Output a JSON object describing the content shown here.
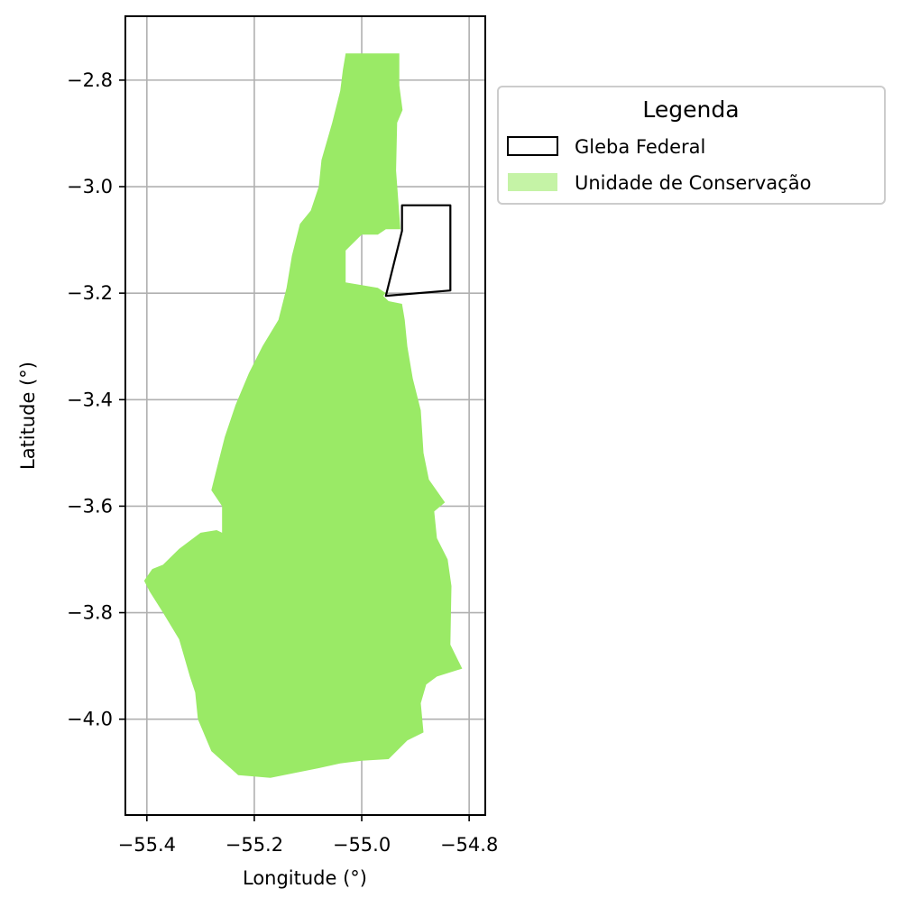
{
  "chart_data": {
    "type": "map",
    "xlabel": "Longitude (°)",
    "ylabel": "Latitude (°)",
    "xlim": [
      -55.44,
      -54.77
    ],
    "ylim": [
      -4.18,
      -2.68
    ],
    "x_ticks": [
      -55.4,
      -55.2,
      -55.0,
      -54.8
    ],
    "x_tick_labels": [
      "−55.4",
      "−55.2",
      "−55.0",
      "−54.8"
    ],
    "y_ticks": [
      -2.8,
      -3.0,
      -3.2,
      -3.4,
      -3.6,
      -3.8,
      -4.0
    ],
    "y_tick_labels": [
      "−2.8",
      "−3.0",
      "−3.2",
      "−3.4",
      "−3.6",
      "−3.8",
      "−4.0"
    ],
    "grid": true,
    "legend": {
      "title": "Legenda",
      "placement": "outside-right-top",
      "entries": [
        {
          "label": "Gleba Federal",
          "style": "outline",
          "color": "#000000"
        },
        {
          "label": "Unidade de Conservação",
          "style": "fill",
          "color": "#c5f3a6"
        }
      ]
    },
    "layers": [
      {
        "name": "Unidade de Conservação",
        "fill": "#9aea66",
        "coordinates": [
          [
            -55.03,
            -2.75
          ],
          [
            -54.93,
            -2.75
          ],
          [
            -54.93,
            -2.81
          ],
          [
            -54.924,
            -2.856
          ],
          [
            -54.934,
            -2.88
          ],
          [
            -54.936,
            -2.97
          ],
          [
            -54.928,
            -3.08
          ],
          [
            -54.955,
            -3.08
          ],
          [
            -54.97,
            -3.09
          ],
          [
            -55.0,
            -3.09
          ],
          [
            -55.03,
            -3.12
          ],
          [
            -55.03,
            -3.18
          ],
          [
            -55.0,
            -3.185
          ],
          [
            -54.97,
            -3.19
          ],
          [
            -54.955,
            -3.2
          ],
          [
            -54.96,
            -3.205
          ],
          [
            -54.95,
            -3.215
          ],
          [
            -54.925,
            -3.22
          ],
          [
            -54.92,
            -3.25
          ],
          [
            -54.915,
            -3.3
          ],
          [
            -54.905,
            -3.36
          ],
          [
            -54.89,
            -3.42
          ],
          [
            -54.885,
            -3.5
          ],
          [
            -54.875,
            -3.55
          ],
          [
            -54.845,
            -3.593
          ],
          [
            -54.865,
            -3.61
          ],
          [
            -54.86,
            -3.66
          ],
          [
            -54.84,
            -3.7
          ],
          [
            -54.833,
            -3.75
          ],
          [
            -54.835,
            -3.86
          ],
          [
            -54.813,
            -3.905
          ],
          [
            -54.86,
            -3.92
          ],
          [
            -54.88,
            -3.935
          ],
          [
            -54.89,
            -3.97
          ],
          [
            -54.885,
            -4.025
          ],
          [
            -54.915,
            -4.04
          ],
          [
            -54.95,
            -4.075
          ],
          [
            -55.0,
            -4.078
          ],
          [
            -55.04,
            -4.083
          ],
          [
            -55.08,
            -4.092
          ],
          [
            -55.12,
            -4.1
          ],
          [
            -55.17,
            -4.11
          ],
          [
            -55.23,
            -4.105
          ],
          [
            -55.28,
            -4.06
          ],
          [
            -55.305,
            -4.0
          ],
          [
            -55.31,
            -3.95
          ],
          [
            -55.32,
            -3.92
          ],
          [
            -55.34,
            -3.85
          ],
          [
            -55.37,
            -3.8
          ],
          [
            -55.395,
            -3.76
          ],
          [
            -55.405,
            -3.74
          ],
          [
            -55.39,
            -3.718
          ],
          [
            -55.37,
            -3.71
          ],
          [
            -55.34,
            -3.68
          ],
          [
            -55.3,
            -3.65
          ],
          [
            -55.27,
            -3.645
          ],
          [
            -55.26,
            -3.65
          ],
          [
            -55.26,
            -3.6
          ],
          [
            -55.28,
            -3.57
          ],
          [
            -55.27,
            -3.53
          ],
          [
            -55.255,
            -3.47
          ],
          [
            -55.235,
            -3.41
          ],
          [
            -55.21,
            -3.35
          ],
          [
            -55.185,
            -3.3
          ],
          [
            -55.155,
            -3.25
          ],
          [
            -55.14,
            -3.19
          ],
          [
            -55.13,
            -3.13
          ],
          [
            -55.115,
            -3.07
          ],
          [
            -55.095,
            -3.045
          ],
          [
            -55.08,
            -3.0
          ],
          [
            -55.075,
            -2.95
          ],
          [
            -55.055,
            -2.88
          ],
          [
            -55.04,
            -2.82
          ],
          [
            -55.035,
            -2.78
          ]
        ]
      },
      {
        "name": "Gleba Federal",
        "stroke": "#000000",
        "coordinates": [
          [
            -54.925,
            -3.035
          ],
          [
            -54.835,
            -3.035
          ],
          [
            -54.835,
            -3.195
          ],
          [
            -54.955,
            -3.205
          ],
          [
            -54.925,
            -3.083
          ]
        ]
      }
    ]
  }
}
